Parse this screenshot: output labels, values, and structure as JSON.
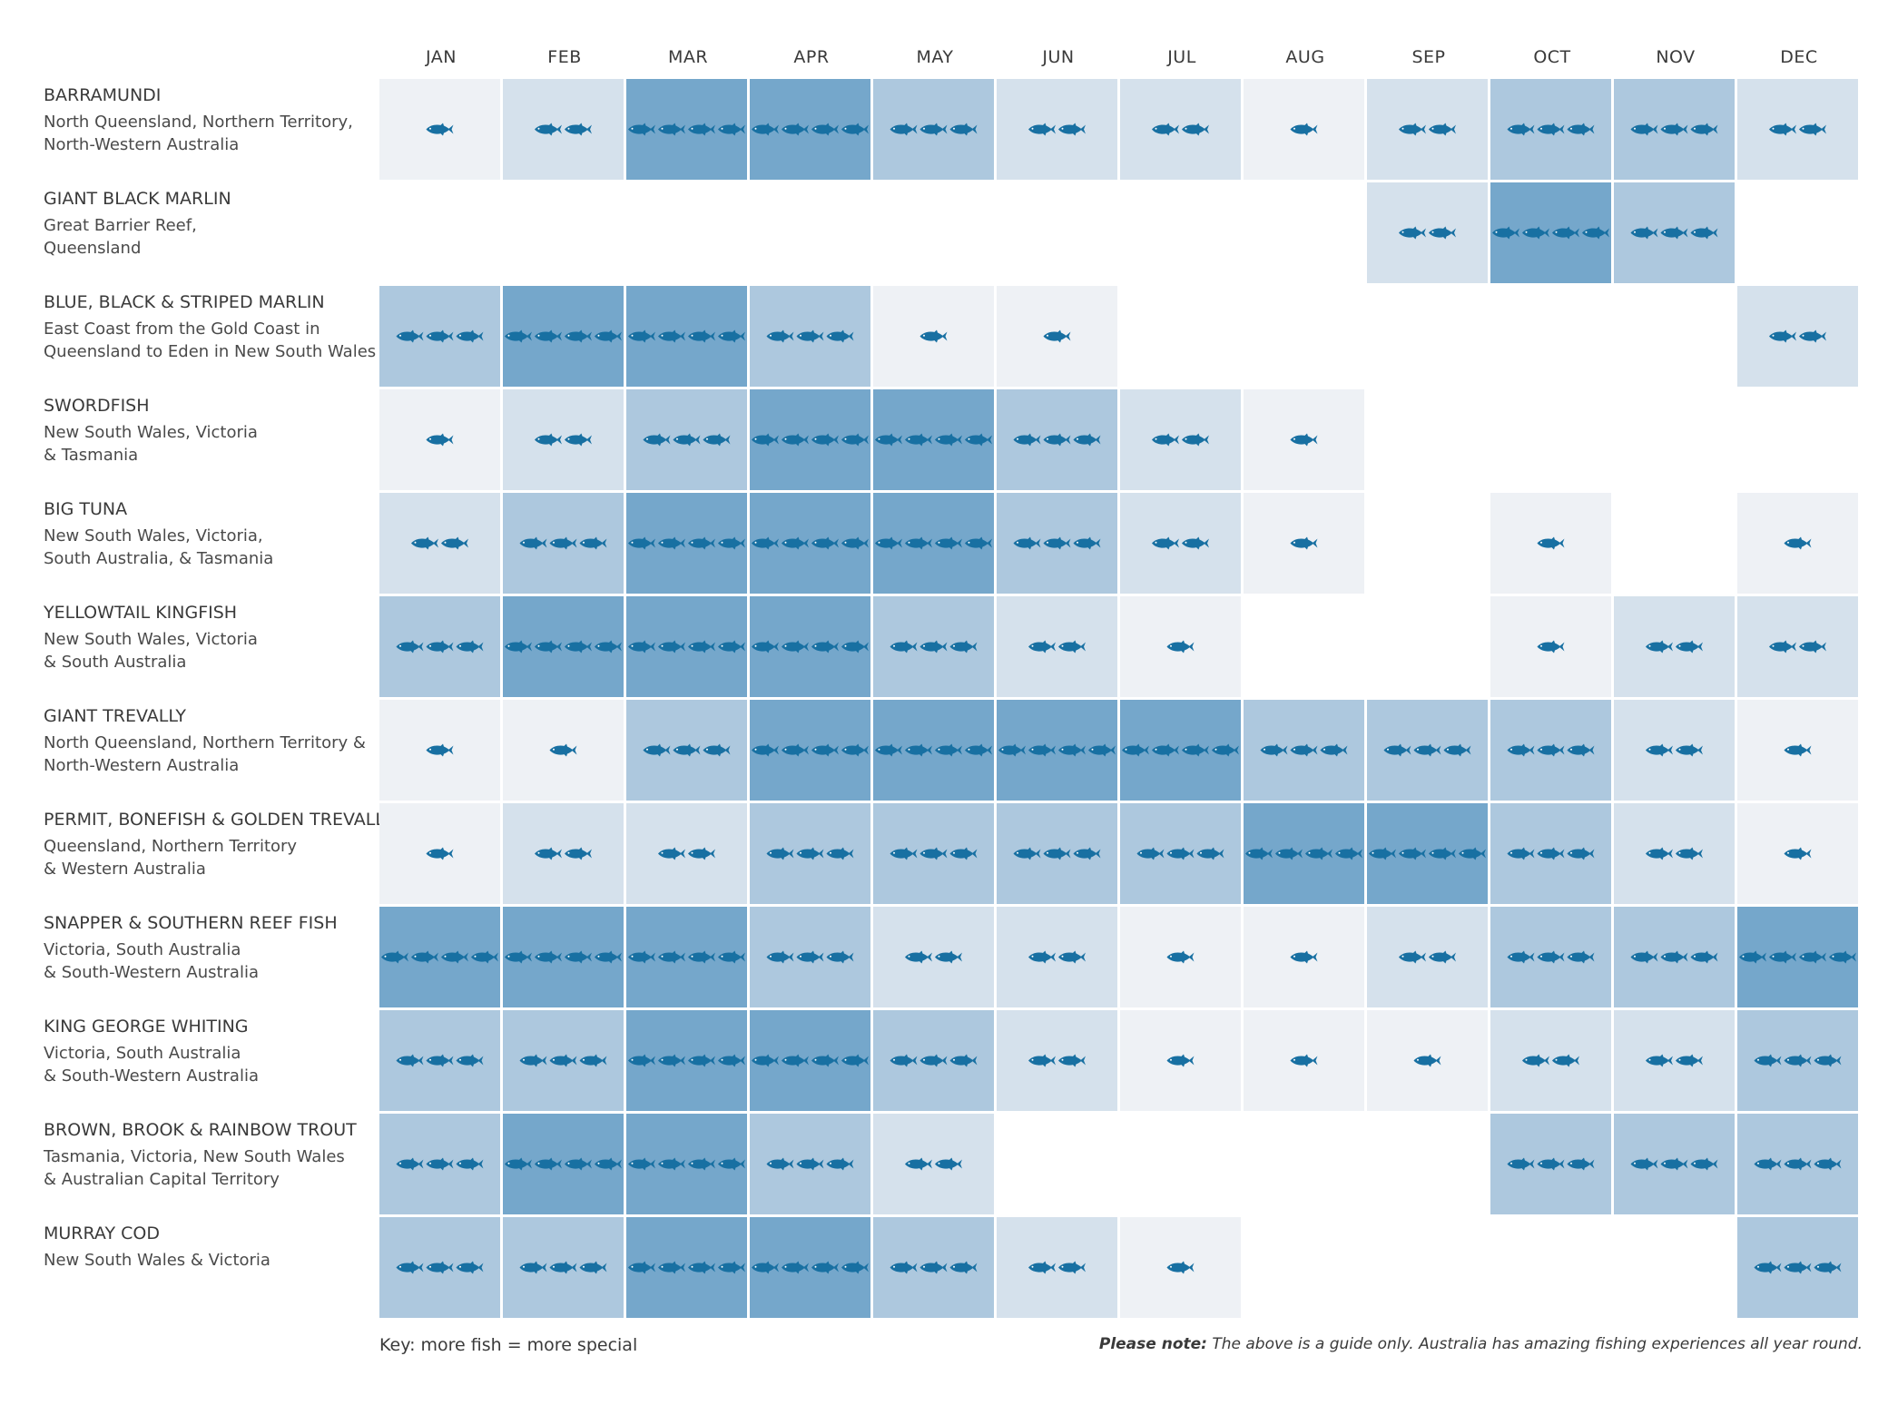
{
  "chart_data": {
    "type": "heatmap",
    "title": "",
    "xlabel": "",
    "ylabel": "",
    "months": [
      "JAN",
      "FEB",
      "MAR",
      "APR",
      "MAY",
      "JUN",
      "JUL",
      "AUG",
      "SEP",
      "OCT",
      "NOV",
      "DEC"
    ],
    "value_range": [
      0,
      4
    ],
    "colors": {
      "1": "#eef1f5",
      "2": "#d5e1ec",
      "3": "#adc8de",
      "4": "#75a7cb",
      "fish": "#1870a2"
    },
    "rows": [
      {
        "name": "BARRAMUNDI",
        "region": [
          "North Queensland, Northern Territory,",
          "North-Western Australia"
        ],
        "values": [
          1,
          2,
          4,
          4,
          3,
          2,
          2,
          1,
          2,
          3,
          3,
          2
        ]
      },
      {
        "name": "GIANT BLACK MARLIN",
        "region": [
          "Great Barrier Reef,",
          "Queensland"
        ],
        "values": [
          0,
          0,
          0,
          0,
          0,
          0,
          0,
          0,
          2,
          4,
          3,
          0
        ]
      },
      {
        "name": "BLUE, BLACK & STRIPED MARLIN",
        "region": [
          "East Coast from the Gold Coast in",
          "Queensland to Eden in New South Wales"
        ],
        "values": [
          3,
          4,
          4,
          3,
          1,
          1,
          0,
          0,
          0,
          0,
          0,
          2
        ]
      },
      {
        "name": "SWORDFISH",
        "region": [
          "New South Wales, Victoria",
          "& Tasmania"
        ],
        "values": [
          1,
          2,
          3,
          4,
          4,
          3,
          2,
          1,
          0,
          0,
          0,
          0
        ]
      },
      {
        "name": "BIG TUNA",
        "region": [
          "New South Wales, Victoria,",
          "South Australia, & Tasmania"
        ],
        "values": [
          2,
          3,
          4,
          4,
          4,
          3,
          2,
          1,
          0,
          1,
          0,
          1
        ]
      },
      {
        "name": "YELLOWTAIL KINGFISH",
        "region": [
          "New South Wales, Victoria",
          "& South Australia"
        ],
        "values": [
          3,
          4,
          4,
          4,
          3,
          2,
          1,
          0,
          0,
          1,
          2,
          2
        ]
      },
      {
        "name": "GIANT TREVALLY",
        "region": [
          "North Queensland, Northern Territory &",
          "North-Western Australia"
        ],
        "values": [
          1,
          1,
          3,
          4,
          4,
          4,
          4,
          3,
          3,
          3,
          2,
          1
        ]
      },
      {
        "name": "PERMIT, BONEFISH & GOLDEN TREVALLY",
        "region": [
          "Queensland, Northern Territory",
          "& Western Australia"
        ],
        "values": [
          1,
          2,
          2,
          3,
          3,
          3,
          3,
          4,
          4,
          3,
          2,
          1
        ]
      },
      {
        "name": "SNAPPER & SOUTHERN REEF FISH",
        "region": [
          "Victoria, South Australia",
          "& South-Western Australia"
        ],
        "values": [
          4,
          4,
          4,
          3,
          2,
          2,
          1,
          1,
          2,
          3,
          3,
          4
        ]
      },
      {
        "name": "KING GEORGE WHITING",
        "region": [
          "Victoria, South Australia",
          "& South-Western Australia"
        ],
        "values": [
          3,
          3,
          4,
          4,
          3,
          2,
          1,
          1,
          1,
          2,
          2,
          3
        ]
      },
      {
        "name": "BROWN, BROOK & RAINBOW TROUT",
        "region": [
          "Tasmania, Victoria, New South Wales",
          "& Australian Capital Territory"
        ],
        "values": [
          3,
          4,
          4,
          3,
          2,
          0,
          0,
          0,
          0,
          3,
          3,
          3
        ]
      },
      {
        "name": "MURRAY COD",
        "region": [
          "New South Wales & Victoria"
        ],
        "values": [
          3,
          3,
          4,
          4,
          3,
          2,
          1,
          0,
          0,
          0,
          0,
          3
        ]
      }
    ],
    "legend": "Key: more fish = more special",
    "note_label": "Please note:",
    "note_text": "The above is a guide only. Australia has amazing fishing experiences all year round."
  }
}
